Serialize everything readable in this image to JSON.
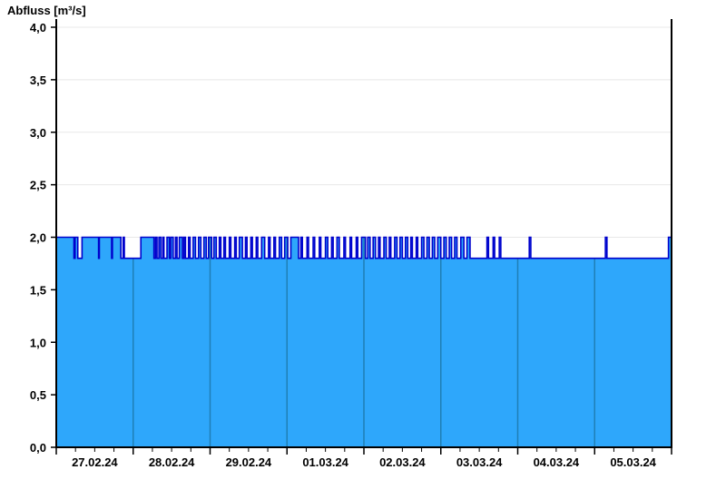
{
  "page": {
    "title": "Abfluss [m³/s]"
  },
  "chart_data": {
    "type": "area",
    "title": "Abfluss [m³/s]",
    "ylabel": "Abfluss [m³/s]",
    "xlabel": "",
    "ylim": [
      0,
      4
    ],
    "y_ticks": [
      {
        "value": 0.0,
        "label": "0,0"
      },
      {
        "value": 0.5,
        "label": "0,5"
      },
      {
        "value": 1.0,
        "label": "1,0"
      },
      {
        "value": 1.5,
        "label": "1,5"
      },
      {
        "value": 2.0,
        "label": "2,0"
      },
      {
        "value": 2.5,
        "label": "2,5"
      },
      {
        "value": 3.0,
        "label": "3,0"
      },
      {
        "value": 3.5,
        "label": "3,5"
      },
      {
        "value": 4.0,
        "label": "4,0"
      }
    ],
    "xlim_days": [
      0,
      8
    ],
    "x_day_labels": [
      "27.02.24",
      "28.02.24",
      "29.02.24",
      "01.03.24",
      "02.03.24",
      "03.03.24",
      "04.03.24",
      "05.03.24"
    ],
    "minor_tick_interval_days": 0.25,
    "grid": "horizontal-only",
    "legend": "none",
    "levels": {
      "high": 2.0,
      "low": 1.8
    },
    "marker_line_day": 8,
    "colors": {
      "fill": "#2EA7FB",
      "line": "#0000CC",
      "day_line_in_fill": "#1F7FB5",
      "grid": "#E8E8E8",
      "axis": "#000000",
      "marker": "#000000",
      "text": "#000000"
    },
    "series": [
      {
        "name": "Abfluss",
        "unit": "m³/s",
        "step_points": [
          [
            0.0,
            2.0
          ],
          [
            0.23,
            1.8
          ],
          [
            0.245,
            2.0
          ],
          [
            0.28,
            1.8
          ],
          [
            0.335,
            2.0
          ],
          [
            0.55,
            1.8
          ],
          [
            0.56,
            2.0
          ],
          [
            0.72,
            1.8
          ],
          [
            0.73,
            2.0
          ],
          [
            0.84,
            1.8
          ],
          [
            0.87,
            2.0
          ],
          [
            0.885,
            1.8
          ],
          [
            1.1,
            2.0
          ],
          [
            1.27,
            1.8
          ],
          [
            1.29,
            2.0
          ],
          [
            1.31,
            1.8
          ],
          [
            1.335,
            2.0
          ],
          [
            1.36,
            1.8
          ],
          [
            1.385,
            2.0
          ],
          [
            1.4,
            1.8
          ],
          [
            1.44,
            2.0
          ],
          [
            1.47,
            1.8
          ],
          [
            1.49,
            2.0
          ],
          [
            1.52,
            1.8
          ],
          [
            1.55,
            2.0
          ],
          [
            1.57,
            1.8
          ],
          [
            1.6,
            2.0
          ],
          [
            1.64,
            1.8
          ],
          [
            1.66,
            2.0
          ],
          [
            1.68,
            1.8
          ],
          [
            1.72,
            2.0
          ],
          [
            1.74,
            1.8
          ],
          [
            1.78,
            2.0
          ],
          [
            1.81,
            1.8
          ],
          [
            1.85,
            2.0
          ],
          [
            1.88,
            1.8
          ],
          [
            1.92,
            2.0
          ],
          [
            1.95,
            1.8
          ],
          [
            1.98,
            2.0
          ],
          [
            2.02,
            1.8
          ],
          [
            2.05,
            2.0
          ],
          [
            2.08,
            1.8
          ],
          [
            2.12,
            2.0
          ],
          [
            2.14,
            1.8
          ],
          [
            2.18,
            2.0
          ],
          [
            2.2,
            1.8
          ],
          [
            2.25,
            2.0
          ],
          [
            2.27,
            1.8
          ],
          [
            2.32,
            2.0
          ],
          [
            2.34,
            1.8
          ],
          [
            2.38,
            2.0
          ],
          [
            2.42,
            1.8
          ],
          [
            2.46,
            2.0
          ],
          [
            2.48,
            1.8
          ],
          [
            2.53,
            2.0
          ],
          [
            2.55,
            1.8
          ],
          [
            2.6,
            2.0
          ],
          [
            2.62,
            1.8
          ],
          [
            2.67,
            2.0
          ],
          [
            2.71,
            1.8
          ],
          [
            2.76,
            2.0
          ],
          [
            2.78,
            1.8
          ],
          [
            2.83,
            2.0
          ],
          [
            2.85,
            1.8
          ],
          [
            2.9,
            2.0
          ],
          [
            2.93,
            1.8
          ],
          [
            2.97,
            2.0
          ],
          [
            3.01,
            1.8
          ],
          [
            3.05,
            2.0
          ],
          [
            3.15,
            1.8
          ],
          [
            3.18,
            2.0
          ],
          [
            3.2,
            1.8
          ],
          [
            3.26,
            2.0
          ],
          [
            3.28,
            1.8
          ],
          [
            3.34,
            2.0
          ],
          [
            3.36,
            1.8
          ],
          [
            3.42,
            2.0
          ],
          [
            3.44,
            1.8
          ],
          [
            3.5,
            2.0
          ],
          [
            3.53,
            1.8
          ],
          [
            3.58,
            2.0
          ],
          [
            3.6,
            1.8
          ],
          [
            3.65,
            2.0
          ],
          [
            3.68,
            1.8
          ],
          [
            3.74,
            2.0
          ],
          [
            3.76,
            1.8
          ],
          [
            3.82,
            2.0
          ],
          [
            3.84,
            1.8
          ],
          [
            3.9,
            2.0
          ],
          [
            3.92,
            1.8
          ],
          [
            3.97,
            2.0
          ],
          [
            4.02,
            1.8
          ],
          [
            4.05,
            2.0
          ],
          [
            4.08,
            1.8
          ],
          [
            4.12,
            2.0
          ],
          [
            4.15,
            1.8
          ],
          [
            4.19,
            2.0
          ],
          [
            4.21,
            1.8
          ],
          [
            4.26,
            2.0
          ],
          [
            4.29,
            1.8
          ],
          [
            4.33,
            2.0
          ],
          [
            4.35,
            1.8
          ],
          [
            4.4,
            2.0
          ],
          [
            4.43,
            1.8
          ],
          [
            4.47,
            2.0
          ],
          [
            4.5,
            1.8
          ],
          [
            4.54,
            2.0
          ],
          [
            4.57,
            1.8
          ],
          [
            4.61,
            2.0
          ],
          [
            4.63,
            1.8
          ],
          [
            4.68,
            2.0
          ],
          [
            4.7,
            1.8
          ],
          [
            4.75,
            2.0
          ],
          [
            4.78,
            1.8
          ],
          [
            4.82,
            2.0
          ],
          [
            4.85,
            1.8
          ],
          [
            4.89,
            2.0
          ],
          [
            4.92,
            1.8
          ],
          [
            4.96,
            2.0
          ],
          [
            5.0,
            1.8
          ],
          [
            5.04,
            2.0
          ],
          [
            5.07,
            1.8
          ],
          [
            5.11,
            2.0
          ],
          [
            5.14,
            1.8
          ],
          [
            5.18,
            2.0
          ],
          [
            5.21,
            1.8
          ],
          [
            5.26,
            2.0
          ],
          [
            5.3,
            1.8
          ],
          [
            5.34,
            2.0
          ],
          [
            5.38,
            1.8
          ],
          [
            5.6,
            2.0
          ],
          [
            5.62,
            1.8
          ],
          [
            5.68,
            2.0
          ],
          [
            5.7,
            1.8
          ],
          [
            5.76,
            2.0
          ],
          [
            5.78,
            1.8
          ],
          [
            6.15,
            2.0
          ],
          [
            6.17,
            1.8
          ],
          [
            7.14,
            2.0
          ],
          [
            7.16,
            1.8
          ],
          [
            7.96,
            2.0
          ]
        ]
      }
    ]
  }
}
